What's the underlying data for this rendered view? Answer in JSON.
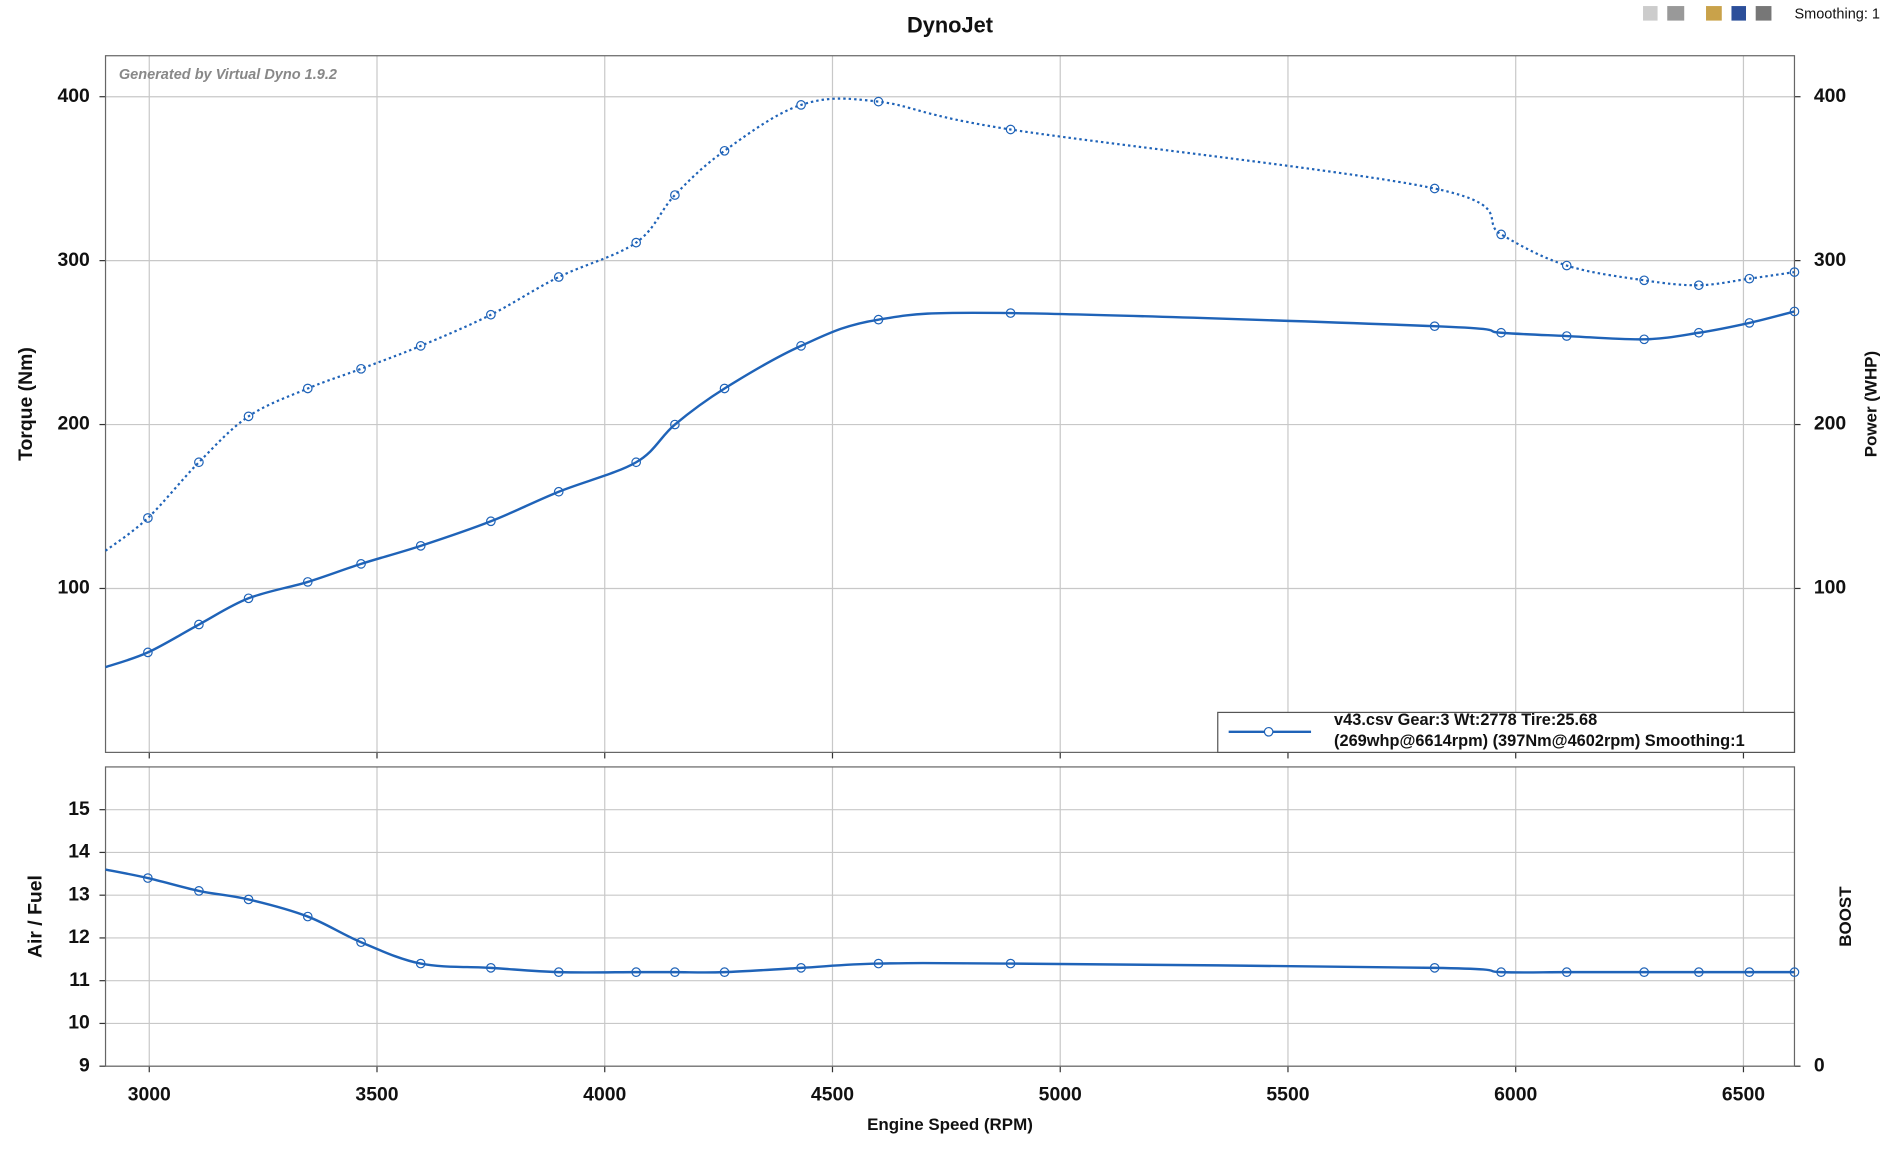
{
  "toolbar": {
    "smoothing": "Smoothing: 1"
  },
  "chart_data": [
    {
      "type": "line",
      "title": "DynoJet",
      "annotation": "Generated by Virtual Dyno 1.9.2",
      "ylabel": "Torque (Nm)",
      "y2label": "Power (WHP)",
      "xlim": [
        2904,
        6612
      ],
      "xticks": [
        3000,
        3500,
        4000,
        4500,
        5000,
        5500,
        6000,
        6500
      ],
      "ylim": [
        0,
        425
      ],
      "yticks": [
        100,
        200,
        300,
        400
      ],
      "y2lim": [
        0,
        425
      ],
      "y2ticks": [
        100,
        200,
        300,
        400
      ],
      "grid": true,
      "legend": {
        "corner": "lower right",
        "lines": [
          "v43.csv Gear:3 Wt:2778 Tire:25.68",
          "(269whp@6614rpm) (397Nm@4602rpm) Smoothing:1"
        ]
      },
      "x": [
        2904,
        2997,
        3109,
        3218,
        3348,
        3465,
        3596,
        3750,
        3899,
        4069,
        4154,
        4263,
        4431,
        4601,
        4891,
        5822,
        5968,
        6112,
        6282,
        6402,
        6513,
        6612
      ],
      "series": [
        {
          "color": "#1f63b8",
          "style": "dotted",
          "values": [
            123,
            143,
            177,
            205,
            222,
            234,
            248,
            267,
            290,
            311,
            340,
            367,
            395,
            397,
            380,
            344,
            316,
            297,
            288,
            285,
            289,
            293
          ]
        },
        {
          "color": "#1f63b8",
          "style": "solid",
          "axis": "y2",
          "values": [
            52,
            61,
            78,
            94,
            104,
            115,
            126,
            141,
            159,
            177,
            200,
            222,
            248,
            264,
            268,
            260,
            256,
            254,
            252,
            256,
            262,
            269
          ]
        }
      ]
    },
    {
      "type": "line",
      "xlabel": "Engine Speed (RPM)",
      "ylabel": "Air / Fuel",
      "y2label": "BOOST",
      "xlim": [
        2904,
        6612
      ],
      "xticks": [
        3000,
        3500,
        4000,
        4500,
        5000,
        5500,
        6000,
        6500
      ],
      "ylim": [
        9,
        16
      ],
      "yticks": [
        9,
        10,
        11,
        12,
        13,
        14,
        15
      ],
      "y2ticks": [
        0
      ],
      "grid": true,
      "x": [
        2904,
        2997,
        3109,
        3218,
        3348,
        3465,
        3596,
        3750,
        3899,
        4069,
        4154,
        4263,
        4431,
        4601,
        4891,
        5822,
        5968,
        6112,
        6282,
        6402,
        6513,
        6612
      ],
      "series": [
        {
          "color": "#1f63b8",
          "style": "solid",
          "values": [
            13.6,
            13.4,
            13.1,
            12.9,
            12.5,
            11.9,
            11.4,
            11.3,
            11.2,
            11.2,
            11.2,
            11.2,
            11.3,
            11.4,
            11.4,
            11.3,
            11.2,
            11.2,
            11.2,
            11.2,
            11.2,
            11.2
          ]
        }
      ]
    }
  ]
}
